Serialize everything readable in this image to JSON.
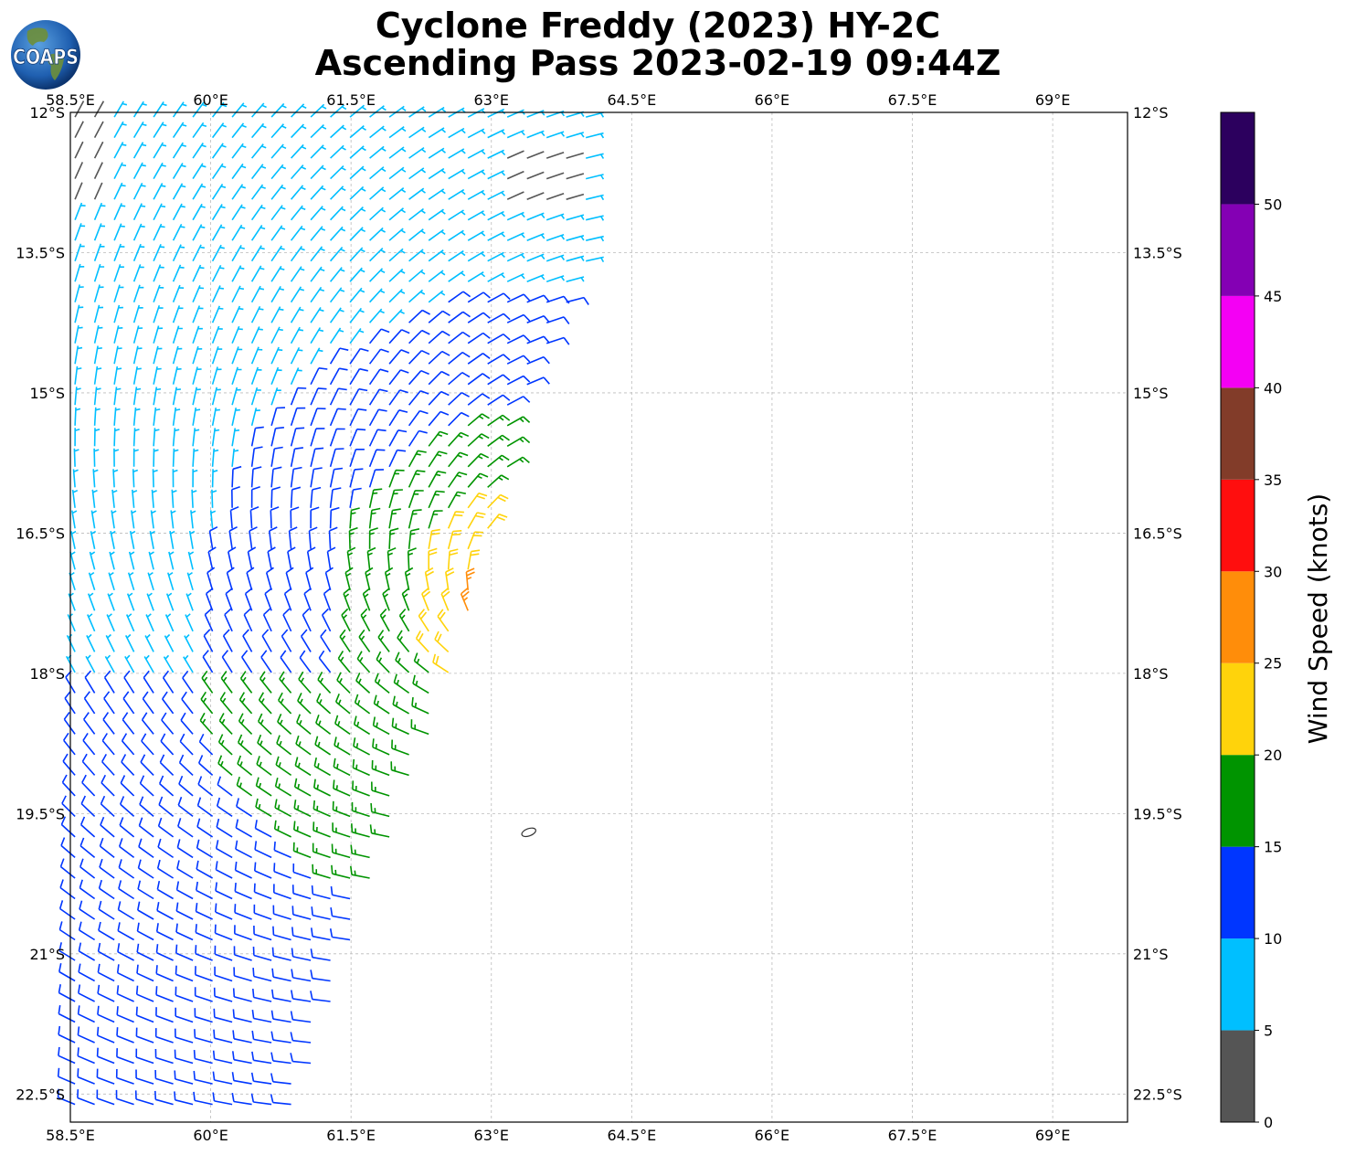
{
  "title_line1": "Cyclone Freddy (2023) HY-2C",
  "title_line2": "Ascending Pass 2023-02-19 09:44Z",
  "logo_text": "COAPS",
  "colorbar": {
    "label": "Wind Speed (knots)",
    "levels": [
      {
        "min": 0,
        "max": 5,
        "color": "#555555"
      },
      {
        "min": 5,
        "max": 10,
        "color": "#00bfff"
      },
      {
        "min": 10,
        "max": 15,
        "color": "#0036ff"
      },
      {
        "min": 15,
        "max": 20,
        "color": "#009400"
      },
      {
        "min": 20,
        "max": 25,
        "color": "#ffd30b"
      },
      {
        "min": 25,
        "max": 30,
        "color": "#ff8d0a"
      },
      {
        "min": 30,
        "max": 35,
        "color": "#ff0e0e"
      },
      {
        "min": 35,
        "max": 40,
        "color": "#823c29"
      },
      {
        "min": 40,
        "max": 45,
        "color": "#f400f4"
      },
      {
        "min": 45,
        "max": 50,
        "color": "#8400b4"
      },
      {
        "min": 50,
        "max": 55,
        "color": "#2c005e"
      }
    ],
    "tick_labels": [
      "0",
      "5",
      "10",
      "15",
      "20",
      "25",
      "30",
      "35",
      "40",
      "45",
      "50"
    ]
  },
  "chart_data": {
    "type": "scatter",
    "description_kind": "wind barbs",
    "xlim": [
      58.5,
      69.8
    ],
    "ylim": [
      -22.8,
      -12.0
    ],
    "grid": true,
    "x_ticks": [
      {
        "value": 58.5,
        "label": "58.5°E"
      },
      {
        "value": 60.0,
        "label": "60°E"
      },
      {
        "value": 61.5,
        "label": "61.5°E"
      },
      {
        "value": 63.0,
        "label": "63°E"
      },
      {
        "value": 64.5,
        "label": "64.5°E"
      },
      {
        "value": 66.0,
        "label": "66°E"
      },
      {
        "value": 67.5,
        "label": "67.5°E"
      },
      {
        "value": 69.0,
        "label": "69°E"
      }
    ],
    "y_ticks": [
      {
        "value": -12.0,
        "label": "12°S"
      },
      {
        "value": -13.5,
        "label": "13.5°S"
      },
      {
        "value": -15.0,
        "label": "15°S"
      },
      {
        "value": -16.5,
        "label": "16.5°S"
      },
      {
        "value": -18.0,
        "label": "18°S"
      },
      {
        "value": -19.5,
        "label": "19.5°S"
      },
      {
        "value": -21.0,
        "label": "21°S"
      },
      {
        "value": -22.5,
        "label": "22.5°S"
      }
    ],
    "swath_east_edge": [
      {
        "lat": -12.0,
        "lon": 64.2
      },
      {
        "lat": -13.5,
        "lon": 64.1
      },
      {
        "lat": -15.0,
        "lon": 63.4
      },
      {
        "lat": -16.5,
        "lon": 63.0
      },
      {
        "lat": -18.0,
        "lon": 62.6
      },
      {
        "lat": -19.5,
        "lon": 62.0
      },
      {
        "lat": -21.0,
        "lon": 61.5
      },
      {
        "lat": -22.8,
        "lon": 60.9
      }
    ],
    "wind_field_center": {
      "lat": -17.3,
      "lon": 63.5
    },
    "wind_speed_regions_knots": [
      {
        "range": "0-5",
        "where": "northwest corner and near 63.5°E 12.5°S"
      },
      {
        "range": "5-10",
        "where": "northwest of 61.5°E north of 16.5°S"
      },
      {
        "range": "10-15",
        "where": "inner band north of 16°S and southwest corner"
      },
      {
        "range": "15-20",
        "where": "ring around center, south of 18°S"
      },
      {
        "range": "20-25",
        "where": "near center 62.5-63°E, 16.5-19.7°S"
      },
      {
        "range": "25-30",
        "where": "near 62.9°E 17.4°S"
      }
    ],
    "island": {
      "lat": -19.7,
      "lon": 63.4
    }
  }
}
